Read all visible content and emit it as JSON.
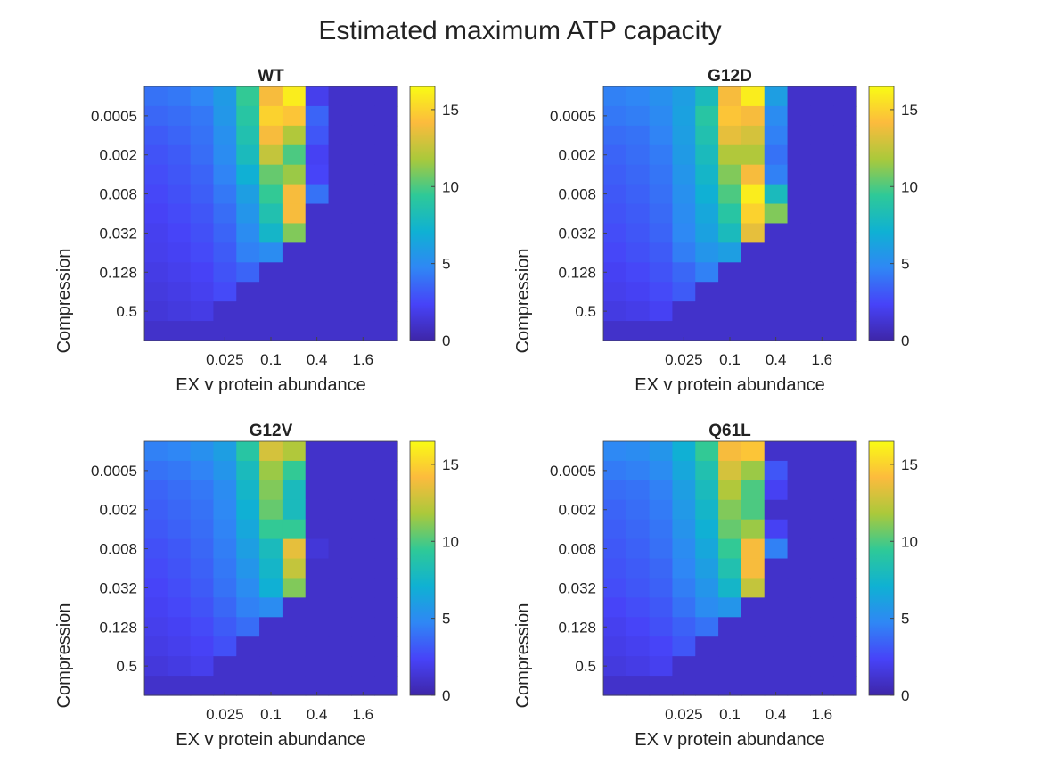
{
  "figure": {
    "title": "Estimated maximum ATP capacity"
  },
  "colormap": [
    "#3e26a8",
    "#4743f8",
    "#2f87f5",
    "#0fb1d3",
    "#2ec998",
    "#aac93b",
    "#fcbb3d",
    "#f9fb14"
  ],
  "chart_data": [
    {
      "type": "heatmap",
      "title": "WT",
      "xlabel": "EX v protein abundance",
      "ylabel": "Compression",
      "xticks": [
        "0.025",
        "0.1",
        "0.4",
        "1.6"
      ],
      "yticks": [
        "0.0005",
        "0.002",
        "0.008",
        "0.032",
        "0.128",
        "0.5"
      ],
      "clim": [
        0,
        16.5
      ],
      "colorbar_ticks": [
        "0",
        "5",
        "10",
        "15"
      ],
      "values": [
        [
          4.0,
          4.2,
          4.7,
          5.8,
          9.5,
          14.0,
          16.0,
          2.0,
          1.0,
          1.0,
          1.0
        ],
        [
          3.6,
          3.8,
          4.2,
          5.6,
          9.0,
          15.0,
          14.5,
          3.5,
          1.0,
          1.0,
          1.0
        ],
        [
          3.2,
          3.5,
          4.0,
          5.2,
          8.5,
          14.0,
          12.0,
          3.0,
          1.0,
          1.0,
          1.0
        ],
        [
          2.9,
          3.2,
          3.8,
          5.0,
          8.0,
          12.5,
          10.0,
          2.2,
          1.0,
          1.0,
          1.0
        ],
        [
          2.7,
          3.0,
          3.5,
          4.6,
          7.0,
          10.5,
          11.5,
          2.4,
          1.0,
          1.0,
          1.0
        ],
        [
          2.5,
          2.8,
          3.3,
          4.2,
          6.0,
          9.5,
          14.0,
          4.0,
          1.0,
          1.0,
          1.0
        ],
        [
          2.3,
          2.6,
          3.0,
          3.8,
          5.5,
          8.5,
          14.0,
          1.0,
          1.0,
          1.0,
          1.0
        ],
        [
          2.1,
          2.4,
          2.8,
          3.5,
          5.0,
          7.5,
          11.0,
          1.0,
          1.0,
          1.0,
          1.0
        ],
        [
          2.0,
          2.2,
          2.6,
          3.2,
          4.5,
          5.0,
          1.0,
          1.0,
          1.0,
          1.0,
          1.0
        ],
        [
          1.8,
          2.0,
          2.3,
          2.9,
          3.5,
          1.0,
          1.0,
          1.0,
          1.0,
          1.0,
          1.0
        ],
        [
          1.6,
          1.8,
          2.1,
          2.6,
          1.0,
          1.0,
          1.0,
          1.0,
          1.0,
          1.0,
          1.0
        ],
        [
          1.4,
          1.6,
          1.8,
          1.0,
          1.0,
          1.0,
          1.0,
          1.0,
          1.0,
          1.0,
          1.0
        ],
        [
          1.0,
          1.0,
          1.0,
          1.0,
          1.0,
          1.0,
          1.0,
          1.0,
          1.0,
          1.0,
          1.0
        ]
      ]
    },
    {
      "type": "heatmap",
      "title": "G12D",
      "xlabel": "EX v protein abundance",
      "ylabel": "Compression",
      "xticks": [
        "0.025",
        "0.1",
        "0.4",
        "1.6"
      ],
      "yticks": [
        "0.0005",
        "0.002",
        "0.008",
        "0.032",
        "0.128",
        "0.5"
      ],
      "clim": [
        0,
        16.5
      ],
      "colorbar_ticks": [
        "0",
        "5",
        "10",
        "15"
      ],
      "values": [
        [
          4.5,
          4.7,
          5.2,
          6.0,
          8.0,
          14.0,
          16.0,
          6.0,
          1.0,
          1.0,
          1.0
        ],
        [
          4.2,
          4.4,
          4.9,
          6.2,
          9.0,
          14.5,
          14.0,
          5.0,
          1.0,
          1.0,
          1.0
        ],
        [
          3.8,
          4.0,
          4.6,
          6.0,
          8.5,
          13.5,
          13.0,
          4.5,
          1.0,
          1.0,
          1.0
        ],
        [
          3.5,
          3.8,
          4.3,
          5.8,
          8.0,
          12.0,
          12.0,
          4.0,
          1.0,
          1.0,
          1.0
        ],
        [
          3.3,
          3.6,
          4.1,
          5.5,
          7.5,
          11.0,
          14.0,
          4.5,
          1.0,
          1.0,
          1.0
        ],
        [
          3.1,
          3.4,
          3.9,
          5.2,
          7.0,
          10.0,
          16.0,
          8.0,
          1.0,
          1.0,
          1.0
        ],
        [
          2.9,
          3.2,
          3.7,
          5.0,
          6.5,
          9.0,
          15.0,
          11.0,
          1.0,
          1.0,
          1.0
        ],
        [
          2.7,
          3.0,
          3.5,
          4.8,
          6.2,
          8.0,
          13.5,
          1.0,
          1.0,
          1.0,
          1.0
        ],
        [
          2.5,
          2.8,
          3.2,
          4.4,
          5.5,
          6.0,
          1.0,
          1.0,
          1.0,
          1.0,
          1.0
        ],
        [
          2.2,
          2.5,
          2.9,
          3.6,
          4.5,
          1.0,
          1.0,
          1.0,
          1.0,
          1.0,
          1.0
        ],
        [
          2.0,
          2.2,
          2.6,
          3.2,
          1.0,
          1.0,
          1.0,
          1.0,
          1.0,
          1.0,
          1.0
        ],
        [
          1.7,
          1.9,
          2.2,
          1.0,
          1.0,
          1.0,
          1.0,
          1.0,
          1.0,
          1.0,
          1.0
        ],
        [
          1.0,
          1.0,
          1.0,
          1.0,
          1.0,
          1.0,
          1.0,
          1.0,
          1.0,
          1.0,
          1.0
        ]
      ]
    },
    {
      "type": "heatmap",
      "title": "G12V",
      "xlabel": "EX v protein abundance",
      "ylabel": "Compression",
      "xticks": [
        "0.025",
        "0.1",
        "0.4",
        "1.6"
      ],
      "yticks": [
        "0.0005",
        "0.002",
        "0.008",
        "0.032",
        "0.128",
        "0.5"
      ],
      "clim": [
        0,
        16.5
      ],
      "colorbar_ticks": [
        "0",
        "5",
        "10",
        "15"
      ],
      "values": [
        [
          4.5,
          4.7,
          5.2,
          6.0,
          9.0,
          13.0,
          12.0,
          1.0,
          1.0,
          1.0,
          1.0
        ],
        [
          4.0,
          4.2,
          4.6,
          5.5,
          8.0,
          11.5,
          9.5,
          1.0,
          1.0,
          1.0,
          1.0
        ],
        [
          3.5,
          3.8,
          4.2,
          5.0,
          7.5,
          11.0,
          8.0,
          1.0,
          1.0,
          1.0,
          1.0
        ],
        [
          3.3,
          3.6,
          4.0,
          4.8,
          7.0,
          10.5,
          8.0,
          1.0,
          1.0,
          1.0,
          1.0
        ],
        [
          3.1,
          3.4,
          3.8,
          4.6,
          6.5,
          9.5,
          9.5,
          1.0,
          1.0,
          1.0,
          1.0
        ],
        [
          2.8,
          3.1,
          3.6,
          4.4,
          6.0,
          8.0,
          13.5,
          1.4,
          1.0,
          1.0,
          1.0
        ],
        [
          2.6,
          2.9,
          3.4,
          4.2,
          5.5,
          7.5,
          12.5,
          1.0,
          1.0,
          1.0,
          1.0
        ],
        [
          2.4,
          2.7,
          3.2,
          4.0,
          5.0,
          7.0,
          11.0,
          1.0,
          1.0,
          1.0,
          1.0
        ],
        [
          2.2,
          2.5,
          2.9,
          3.6,
          4.5,
          5.0,
          1.0,
          1.0,
          1.0,
          1.0,
          1.0
        ],
        [
          2.0,
          2.2,
          2.6,
          3.2,
          3.8,
          1.0,
          1.0,
          1.0,
          1.0,
          1.0,
          1.0
        ],
        [
          1.8,
          2.0,
          2.3,
          2.8,
          1.0,
          1.0,
          1.0,
          1.0,
          1.0,
          1.0,
          1.0
        ],
        [
          1.5,
          1.7,
          2.0,
          1.0,
          1.0,
          1.0,
          1.0,
          1.0,
          1.0,
          1.0,
          1.0
        ],
        [
          1.0,
          1.0,
          1.0,
          1.0,
          1.0,
          1.0,
          1.0,
          1.0,
          1.0,
          1.0,
          1.0
        ]
      ]
    },
    {
      "type": "heatmap",
      "title": "Q61L",
      "xlabel": "EX v protein abundance",
      "ylabel": "Compression",
      "xticks": [
        "0.025",
        "0.1",
        "0.4",
        "1.6"
      ],
      "yticks": [
        "0.0005",
        "0.002",
        "0.008",
        "0.032",
        "0.128",
        "0.5"
      ],
      "clim": [
        0,
        16.5
      ],
      "colorbar_ticks": [
        "0",
        "5",
        "10",
        "15"
      ],
      "values": [
        [
          4.8,
          5.0,
          5.5,
          7.0,
          9.5,
          14.0,
          14.5,
          1.0,
          1.0,
          1.0,
          1.0
        ],
        [
          4.3,
          4.5,
          5.0,
          6.5,
          8.5,
          13.0,
          11.5,
          3.0,
          1.0,
          1.0,
          1.0
        ],
        [
          3.8,
          4.0,
          4.5,
          6.0,
          8.0,
          12.0,
          10.0,
          2.2,
          1.0,
          1.0,
          1.0
        ],
        [
          3.5,
          3.8,
          4.3,
          5.7,
          7.5,
          11.0,
          10.0,
          1.0,
          1.0,
          1.0,
          1.0
        ],
        [
          3.3,
          3.6,
          4.1,
          5.4,
          7.0,
          10.5,
          11.5,
          2.2,
          1.0,
          1.0,
          1.0
        ],
        [
          3.1,
          3.4,
          3.9,
          5.0,
          6.5,
          9.5,
          14.0,
          4.5,
          1.0,
          1.0,
          1.0
        ],
        [
          2.9,
          3.2,
          3.6,
          4.7,
          6.0,
          8.5,
          14.0,
          1.0,
          1.0,
          1.0,
          1.0
        ],
        [
          2.7,
          3.0,
          3.4,
          4.4,
          5.5,
          7.5,
          12.5,
          1.0,
          1.0,
          1.0,
          1.0
        ],
        [
          2.4,
          2.7,
          3.1,
          4.0,
          5.0,
          5.5,
          1.0,
          1.0,
          1.0,
          1.0,
          1.0
        ],
        [
          2.1,
          2.4,
          2.8,
          3.4,
          4.0,
          1.0,
          1.0,
          1.0,
          1.0,
          1.0,
          1.0
        ],
        [
          1.9,
          2.1,
          2.4,
          3.0,
          1.0,
          1.0,
          1.0,
          1.0,
          1.0,
          1.0,
          1.0
        ],
        [
          1.6,
          1.8,
          2.1,
          1.0,
          1.0,
          1.0,
          1.0,
          1.0,
          1.0,
          1.0,
          1.0
        ],
        [
          1.0,
          1.0,
          1.0,
          1.0,
          1.0,
          1.0,
          1.0,
          1.0,
          1.0,
          1.0,
          1.0
        ]
      ]
    }
  ]
}
